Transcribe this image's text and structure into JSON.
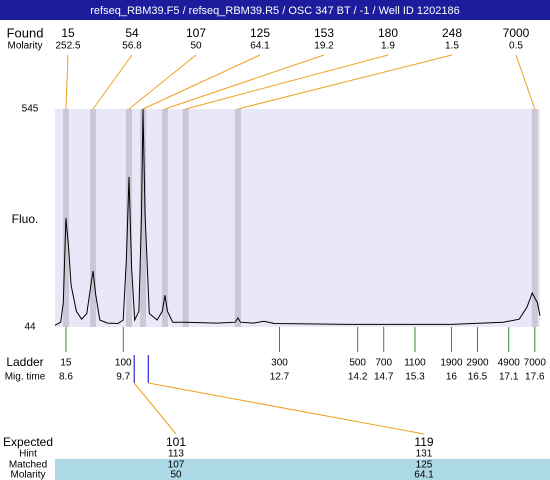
{
  "header": {
    "title": "refseq_RBM39.F5 / refseq_RBM39.R5 / OSC 347 BT / -1 / Well ID 1202186"
  },
  "chart_data": {
    "type": "line",
    "y_label": "Fluo.",
    "color": "#000000",
    "ylim": [
      44,
      545
    ],
    "yticks": [
      44,
      545
    ],
    "xlim": [
      8.39,
      17.7
    ],
    "x": [
      8.39,
      8.5,
      8.55,
      8.6,
      8.65,
      8.7,
      8.8,
      8.9,
      9.0,
      9.08,
      9.12,
      9.17,
      9.25,
      9.4,
      9.6,
      9.7,
      9.76,
      9.81,
      9.86,
      9.92,
      10.0,
      10.05,
      10.08,
      10.12,
      10.2,
      10.35,
      10.45,
      10.5,
      10.55,
      10.65,
      10.9,
      11.5,
      11.85,
      11.9,
      11.95,
      12.2,
      12.4,
      12.6,
      14,
      16,
      17.0,
      17.3,
      17.45,
      17.55,
      17.65,
      17.7
    ],
    "values": [
      48,
      55,
      100,
      294,
      230,
      140,
      80,
      62,
      75,
      140,
      173,
      120,
      60,
      53,
      52,
      60,
      200,
      389,
      180,
      60,
      80,
      300,
      545,
      300,
      75,
      60,
      80,
      117,
      80,
      55,
      55,
      53,
      55,
      65,
      55,
      53,
      57,
      52,
      50,
      50,
      55,
      62,
      90,
      122,
      100,
      70
    ],
    "found": {
      "label": "Found",
      "molarity_label": "Molarity",
      "band_color": "#c8c8d6",
      "line_color": "#f0a020",
      "sizes": [
        15,
        54,
        107,
        125,
        153,
        180,
        248,
        7000
      ],
      "molarity": [
        252.5,
        56.8,
        50,
        64.1,
        19.2,
        1.9,
        1.5,
        0.5
      ],
      "mig_times": [
        8.6,
        9.12,
        9.81,
        10.08,
        10.5,
        10.9,
        11.9,
        17.6
      ]
    },
    "ladder": {
      "label": "Ladder",
      "time_label": "Mig. time",
      "color": "#2e8b2e",
      "sizes": [
        15,
        100,
        300,
        500,
        700,
        1100,
        1900,
        2900,
        4900,
        7000
      ],
      "mig_times": [
        8.6,
        9.7,
        12.7,
        14.2,
        14.7,
        15.3,
        16,
        16.5,
        17.1,
        17.6
      ]
    },
    "expected": {
      "row_labels": [
        "Expected",
        "Hint",
        "Matched",
        "Molarity"
      ],
      "marker_color": "#0000cc",
      "columns": [
        {
          "expected": 101,
          "hint": 113,
          "matched": 107,
          "molarity": 50,
          "mig_time": 9.91
        },
        {
          "expected": 119,
          "hint": 131,
          "matched": 125,
          "molarity": 64.1,
          "mig_time": 10.18
        }
      ]
    }
  }
}
